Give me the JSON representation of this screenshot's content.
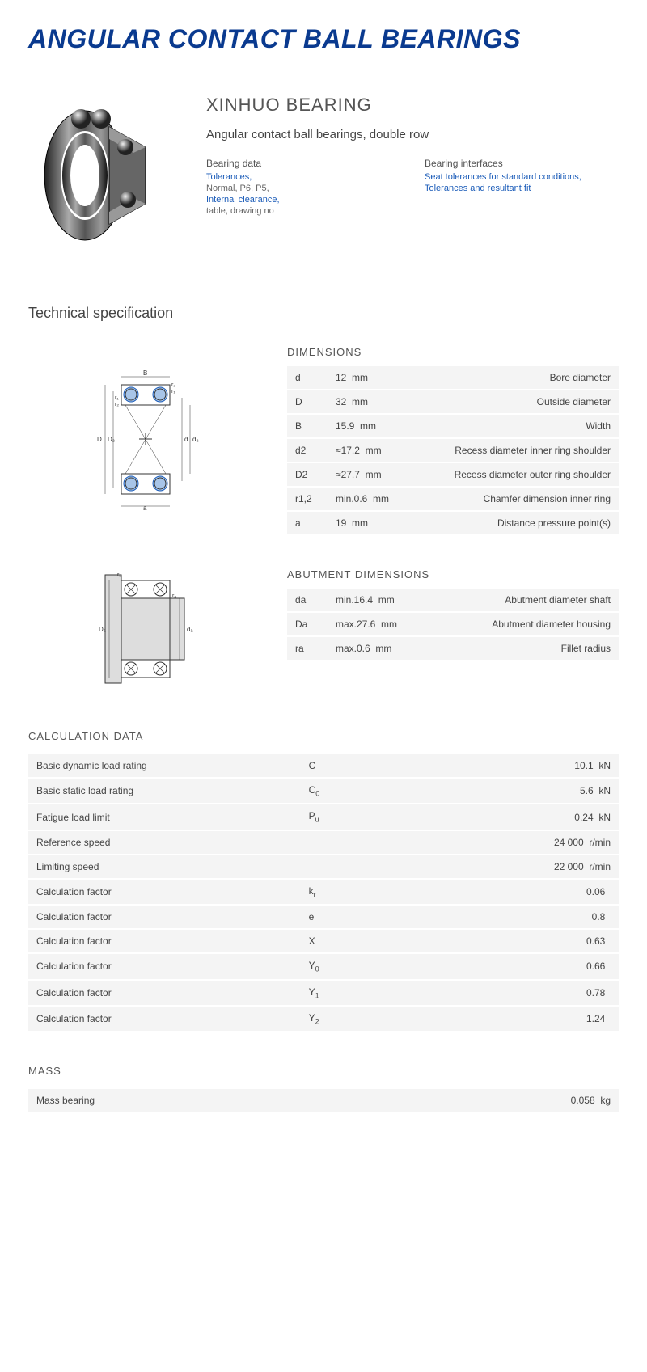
{
  "colors": {
    "title": "#0a3a8f",
    "link": "#1a5bb8",
    "text": "#444444",
    "muted": "#666666",
    "row_bg": "#f4f4f4"
  },
  "page_title": "ANGULAR CONTACT BALL BEARINGS",
  "brand": "XINHUO BEARING",
  "subtitle": "Angular contact ball bearings, double row",
  "bearing_data": {
    "title": "Bearing data",
    "items": [
      {
        "text": "Tolerances,",
        "link": true
      },
      {
        "text": "Normal, P6, P5,",
        "link": false
      },
      {
        "text": "Internal clearance,",
        "link": true
      },
      {
        "text": "table, drawing no",
        "link": false
      }
    ]
  },
  "bearing_interfaces": {
    "title": "Bearing interfaces",
    "items": [
      {
        "text": "Seat tolerances for standard conditions,",
        "link": true
      },
      {
        "text": "Tolerances and resultant fit",
        "link": true
      }
    ]
  },
  "tech_spec_title": "Technical specification",
  "dimensions": {
    "label": "DIMENSIONS",
    "rows": [
      {
        "sym": "d",
        "val": "12",
        "unit": "mm",
        "desc": "Bore diameter"
      },
      {
        "sym": "D",
        "val": "32",
        "unit": "mm",
        "desc": "Outside diameter"
      },
      {
        "sym": "B",
        "val": "15.9",
        "unit": "mm",
        "desc": "Width"
      },
      {
        "sym": "d2",
        "val": "≈17.2",
        "unit": "mm",
        "desc": "Recess diameter inner ring shoulder"
      },
      {
        "sym": "D2",
        "val": "≈27.7",
        "unit": "mm",
        "desc": "Recess diameter outer ring shoulder"
      },
      {
        "sym": "r1,2",
        "val": "min.0.6",
        "unit": "mm",
        "desc": "Chamfer dimension inner ring"
      },
      {
        "sym": "a",
        "val": "19",
        "unit": "mm",
        "desc": "Distance pressure point(s)"
      }
    ]
  },
  "abutment": {
    "label": "ABUTMENT DIMENSIONS",
    "rows": [
      {
        "sym": "da",
        "val": "min.16.4",
        "unit": "mm",
        "desc": "Abutment diameter shaft"
      },
      {
        "sym": "Da",
        "val": "max.27.6",
        "unit": "mm",
        "desc": "Abutment diameter housing"
      },
      {
        "sym": "ra",
        "val": "max.0.6",
        "unit": "mm",
        "desc": "Fillet radius"
      }
    ]
  },
  "calculation": {
    "label": "CALCULATION DATA",
    "rows": [
      {
        "desc": "Basic dynamic load rating",
        "sym": "C",
        "sub": "",
        "val": "10.1",
        "unit": "kN"
      },
      {
        "desc": "Basic static load rating",
        "sym": "C",
        "sub": "0",
        "val": "5.6",
        "unit": "kN"
      },
      {
        "desc": "Fatigue load limit",
        "sym": "P",
        "sub": "u",
        "val": "0.24",
        "unit": "kN"
      },
      {
        "desc": "Reference speed",
        "sym": "",
        "sub": "",
        "val": "24 000",
        "unit": "r/min"
      },
      {
        "desc": "Limiting speed",
        "sym": "",
        "sub": "",
        "val": "22 000",
        "unit": "r/min"
      },
      {
        "desc": "Calculation factor",
        "sym": "k",
        "sub": "r",
        "val": "0.06",
        "unit": ""
      },
      {
        "desc": "Calculation factor",
        "sym": "e",
        "sub": "",
        "val": "0.8",
        "unit": ""
      },
      {
        "desc": "Calculation factor",
        "sym": "X",
        "sub": "",
        "val": "0.63",
        "unit": ""
      },
      {
        "desc": "Calculation factor",
        "sym": "Y",
        "sub": "0",
        "val": "0.66",
        "unit": ""
      },
      {
        "desc": "Calculation factor",
        "sym": "Y",
        "sub": "1",
        "val": "0.78",
        "unit": ""
      },
      {
        "desc": "Calculation factor",
        "sym": "Y",
        "sub": "2",
        "val": "1.24",
        "unit": ""
      }
    ]
  },
  "mass": {
    "label": "MASS",
    "rows": [
      {
        "desc": "Mass bearing",
        "sym": "",
        "sub": "",
        "val": "0.058",
        "unit": "kg"
      }
    ]
  }
}
